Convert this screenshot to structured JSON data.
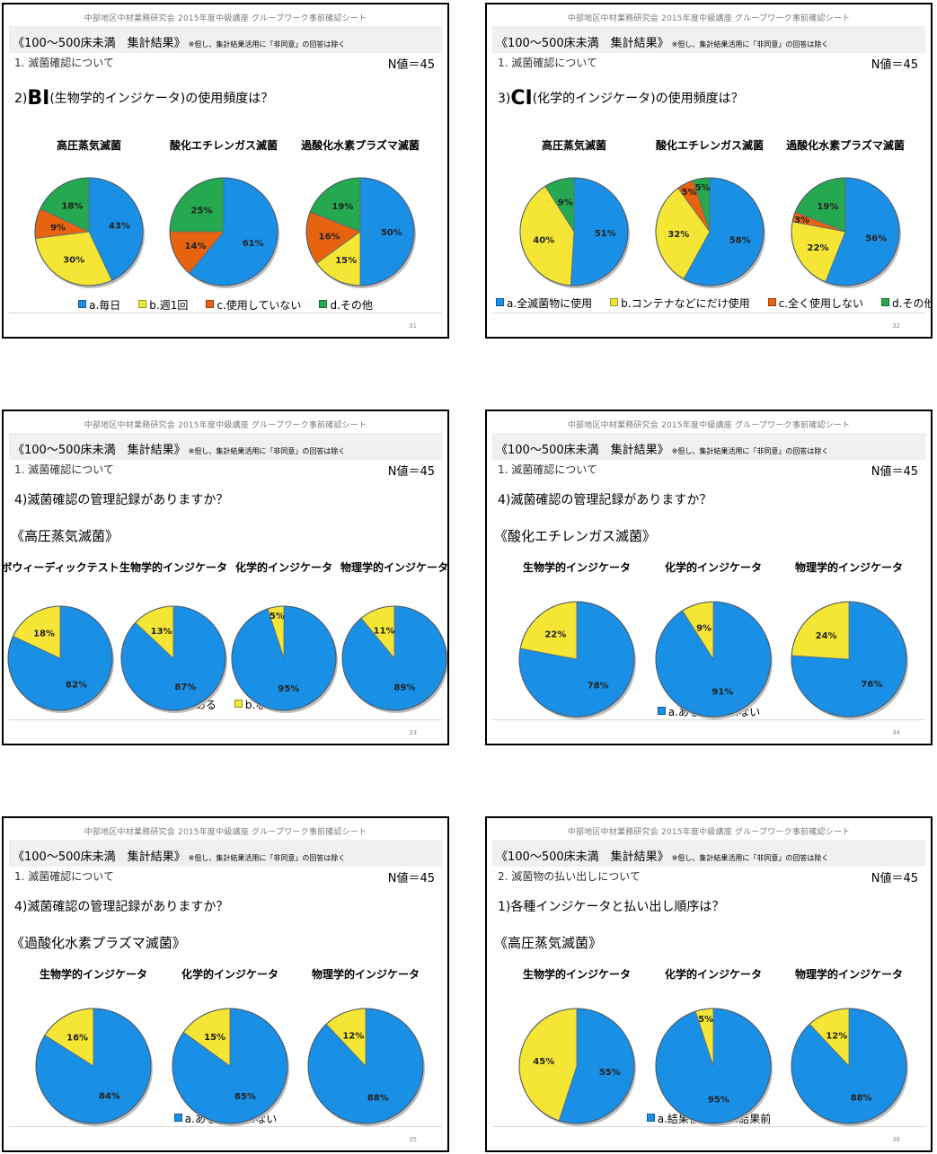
{
  "slides": [
    {
      "id": "s31",
      "header": "中部地区中材業務研究会 2015年度中級講座 グループワーク事前確認シート",
      "band_title": "《100～500床未満　集計結果》",
      "band_note": "※但し、集計結果活用に「非同意」の回答は除く",
      "section": "1. 滅菌確認について",
      "n_value": "N値＝45",
      "question_prefix": "2)",
      "question_big": "BI",
      "question_rest": "(生物学的インジケータ)の使用頻度は？",
      "subheading": "",
      "page_no": "31",
      "legend": [
        {
          "label": "a.毎日",
          "color": "#1a8fe6"
        },
        {
          "label": "b.週1回",
          "color": "#f5e534"
        },
        {
          "label": "c.使用していない",
          "color": "#e8630f"
        },
        {
          "label": "d.その他",
          "color": "#25a84f"
        }
      ]
    },
    {
      "id": "s32",
      "header": "中部地区中材業務研究会 2015年度中級講座 グループワーク事前確認シート",
      "band_title": "《100～500床未満　集計結果》",
      "band_note": "※但し、集計結果活用に「非同意」の回答は除く",
      "section": "1. 滅菌確認について",
      "n_value": "N値＝45",
      "question_prefix": "3)",
      "question_big": "CI",
      "question_rest": "(化学的インジケータ)の使用頻度は？",
      "subheading": "",
      "page_no": "32",
      "legend": [
        {
          "label": "a.全滅菌物に使用",
          "color": "#1a8fe6"
        },
        {
          "label": "b.コンテナなどにだけ使用",
          "color": "#f5e534"
        },
        {
          "label": "c.全く使用しない",
          "color": "#e8630f"
        },
        {
          "label": "d.その他",
          "color": "#25a84f"
        }
      ]
    },
    {
      "id": "s33",
      "header": "中部地区中材業務研究会 2015年度中級講座 グループワーク事前確認シート",
      "band_title": "《100～500床未満　集計結果》",
      "band_note": "※但し、集計結果活用に「非同意」の回答は除く",
      "section": "1. 滅菌確認について",
      "n_value": "N値＝45",
      "question_prefix": "4)",
      "question_big": "",
      "question_rest": "滅菌確認の管理記録がありますか？",
      "subheading": "《高圧蒸気滅菌》",
      "page_no": "33",
      "legend": [
        {
          "label": "a.ある",
          "color": "#1a8fe6"
        },
        {
          "label": "b.ない",
          "color": "#f5e534"
        }
      ]
    },
    {
      "id": "s34",
      "header": "中部地区中材業務研究会 2015年度中級講座 グループワーク事前確認シート",
      "band_title": "《100～500床未満　集計結果》",
      "band_note": "※但し、集計結果活用に「非同意」の回答は除く",
      "section": "1. 滅菌確認について",
      "n_value": "N値＝45",
      "question_prefix": "4)",
      "question_big": "",
      "question_rest": "滅菌確認の管理記録がありますか？",
      "subheading": "《酸化エチレンガス滅菌》",
      "page_no": "34",
      "legend": [
        {
          "label": "a.ある",
          "color": "#1a8fe6"
        },
        {
          "label": "b.ない",
          "color": "#f5e534"
        }
      ]
    },
    {
      "id": "s35",
      "header": "中部地区中材業務研究会 2015年度中級講座 グループワーク事前確認シート",
      "band_title": "《100～500床未満　集計結果》",
      "band_note": "※但し、集計結果活用に「非同意」の回答は除く",
      "section": "1. 滅菌確認について",
      "n_value": "N値＝45",
      "question_prefix": "4)",
      "question_big": "",
      "question_rest": "滅菌確認の管理記録がありますか？",
      "subheading": "《過酸化水素プラズマ滅菌》",
      "page_no": "35",
      "legend": [
        {
          "label": "a.ある",
          "color": "#1a8fe6"
        },
        {
          "label": "b.ない",
          "color": "#f5e534"
        }
      ]
    },
    {
      "id": "s36",
      "header": "中部地区中材業務研究会 2015年度中級講座 グループワーク事前確認シート",
      "band_title": "《100～500床未満　集計結果》",
      "band_note": "※但し、集計結果活用に「非同意」の回答は除く",
      "section": "2. 滅菌物の払い出しについて",
      "n_value": "N値＝45",
      "question_prefix": "1)",
      "question_big": "",
      "question_rest": "各種インジケータと払い出し順序は？",
      "subheading": "《高圧蒸気滅菌》",
      "page_no": "36",
      "legend": [
        {
          "label": "a.結果後",
          "color": "#1a8fe6"
        },
        {
          "label": "b.結果前",
          "color": "#f5e534"
        }
      ]
    }
  ],
  "chart_data": [
    {
      "type": "pie",
      "slide": "s31",
      "title": "高圧蒸気滅菌",
      "labels": [
        "a.毎日",
        "b.週1回",
        "c.使用していない",
        "d.その他"
      ],
      "values": [
        43,
        30,
        9,
        18
      ]
    },
    {
      "type": "pie",
      "slide": "s31",
      "title": "酸化エチレンガス滅菌",
      "labels": [
        "a.毎日",
        "b.週1回",
        "c.使用していない",
        "d.その他"
      ],
      "values": [
        61,
        0,
        14,
        25
      ]
    },
    {
      "type": "pie",
      "slide": "s31",
      "title": "過酸化水素プラズマ滅菌",
      "labels": [
        "a.毎日",
        "b.週1回",
        "c.使用していない",
        "d.その他"
      ],
      "values": [
        50,
        15,
        16,
        19
      ]
    },
    {
      "type": "pie",
      "slide": "s32",
      "title": "高圧蒸気滅菌",
      "labels": [
        "a.全滅菌物に使用",
        "b.コンテナなどにだけ使用",
        "c.全く使用しない",
        "d.その他"
      ],
      "values": [
        51,
        40,
        0,
        9
      ]
    },
    {
      "type": "pie",
      "slide": "s32",
      "title": "酸化エチレンガス滅菌",
      "labels": [
        "a.全滅菌物に使用",
        "b.コンテナなどにだけ使用",
        "c.全く使用しない",
        "d.その他"
      ],
      "values": [
        58,
        32,
        5,
        5
      ]
    },
    {
      "type": "pie",
      "slide": "s32",
      "title": "過酸化水素プラズマ滅菌",
      "labels": [
        "a.全滅菌物に使用",
        "b.コンテナなどにだけ使用",
        "c.全く使用しない",
        "d.その他"
      ],
      "values": [
        56,
        22,
        3,
        19
      ]
    },
    {
      "type": "pie",
      "slide": "s33",
      "title": "ボウィーディックテスト",
      "labels": [
        "a.ある",
        "b.ない"
      ],
      "values": [
        82,
        18
      ]
    },
    {
      "type": "pie",
      "slide": "s33",
      "title": "生物学的インジケータ",
      "labels": [
        "a.ある",
        "b.ない"
      ],
      "values": [
        87,
        13
      ]
    },
    {
      "type": "pie",
      "slide": "s33",
      "title": "化学的インジケータ",
      "labels": [
        "a.ある",
        "b.ない"
      ],
      "values": [
        95,
        5
      ]
    },
    {
      "type": "pie",
      "slide": "s33",
      "title": "物理学的インジケータ",
      "labels": [
        "a.ある",
        "b.ない"
      ],
      "values": [
        89,
        11
      ]
    },
    {
      "type": "pie",
      "slide": "s34",
      "title": "生物学的インジケータ",
      "labels": [
        "a.ある",
        "b.ない"
      ],
      "values": [
        78,
        22
      ]
    },
    {
      "type": "pie",
      "slide": "s34",
      "title": "化学的インジケータ",
      "labels": [
        "a.ある",
        "b.ない"
      ],
      "values": [
        91,
        9
      ]
    },
    {
      "type": "pie",
      "slide": "s34",
      "title": "物理学的インジケータ",
      "labels": [
        "a.ある",
        "b.ない"
      ],
      "values": [
        76,
        24
      ]
    },
    {
      "type": "pie",
      "slide": "s35",
      "title": "生物学的インジケータ",
      "labels": [
        "a.ある",
        "b.ない"
      ],
      "values": [
        84,
        16
      ]
    },
    {
      "type": "pie",
      "slide": "s35",
      "title": "化学的インジケータ",
      "labels": [
        "a.ある",
        "b.ない"
      ],
      "values": [
        85,
        15
      ]
    },
    {
      "type": "pie",
      "slide": "s35",
      "title": "物理学的インジケータ",
      "labels": [
        "a.ある",
        "b.ない"
      ],
      "values": [
        88,
        12
      ]
    },
    {
      "type": "pie",
      "slide": "s36",
      "title": "生物学的インジケータ",
      "labels": [
        "a.結果後",
        "b.結果前"
      ],
      "values": [
        55,
        45
      ]
    },
    {
      "type": "pie",
      "slide": "s36",
      "title": "化学的インジケータ",
      "labels": [
        "a.結果後",
        "b.結果前"
      ],
      "values": [
        95,
        5
      ]
    },
    {
      "type": "pie",
      "slide": "s36",
      "title": "物理学的インジケータ",
      "labels": [
        "a.結果後",
        "b.結果前"
      ],
      "values": [
        88,
        12
      ]
    }
  ]
}
